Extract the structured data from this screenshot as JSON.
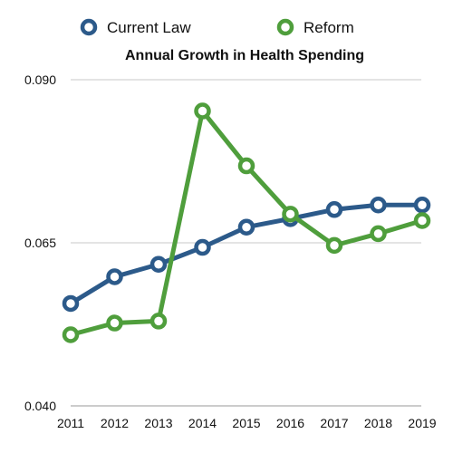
{
  "chart_data": {
    "type": "line",
    "title": "Annual Growth in Health Spending",
    "xlabel": "",
    "ylabel": "",
    "categories": [
      "2011",
      "2012",
      "2013",
      "2014",
      "2015",
      "2016",
      "2017",
      "2018",
      "2019"
    ],
    "ylim": [
      0.04,
      0.09
    ],
    "yticks": [
      "0.040",
      "0.065",
      "0.090"
    ],
    "grid": true,
    "legend_position": "top",
    "series": [
      {
        "name": "Current Law",
        "color": "#2c5a8a",
        "values": [
          0.0557,
          0.0598,
          0.0617,
          0.0643,
          0.0674,
          0.0687,
          0.0701,
          0.0708,
          0.0708
        ]
      },
      {
        "name": "Reform",
        "color": "#4f9e3c",
        "values": [
          0.0509,
          0.0527,
          0.053,
          0.0852,
          0.0768,
          0.0694,
          0.0646,
          0.0664,
          0.0684
        ]
      }
    ]
  }
}
